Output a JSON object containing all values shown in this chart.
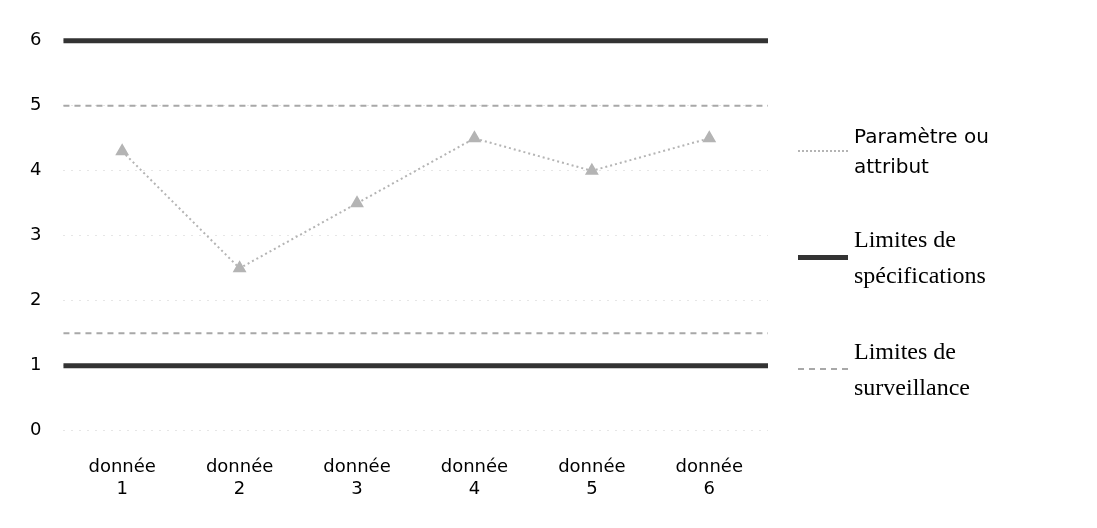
{
  "chart_data": {
    "type": "line",
    "categories": [
      "donnée 1",
      "donnée 2",
      "donnée 3",
      "donnée 4",
      "donnée 5",
      "donnée 6"
    ],
    "series": [
      {
        "name": "Paramètre ou attribut",
        "color": "#b4b4b4",
        "values": [
          4.3,
          2.5,
          3.5,
          4.5,
          4.0,
          4.5
        ]
      }
    ],
    "ylim": [
      0,
      6
    ],
    "yticks": [
      0,
      1,
      2,
      3,
      4,
      5,
      6
    ],
    "grid": "y",
    "legend": "right",
    "marker": "triangle",
    "line_style": "dotted",
    "ref_lines": [
      {
        "axis": "y",
        "value": 6,
        "label": "Limites de spécifications",
        "color": "#333333",
        "line_style": "solid"
      },
      {
        "axis": "y",
        "value": 1,
        "color": "#333333",
        "line_style": "solid"
      },
      {
        "axis": "y",
        "value": 5,
        "label": "Limites de surveillance",
        "color": "#a8a8a8",
        "line_style": "dashed"
      },
      {
        "axis": "y",
        "value": 1.5,
        "color": "#a8a8a8",
        "line_style": "dashed"
      }
    ]
  }
}
